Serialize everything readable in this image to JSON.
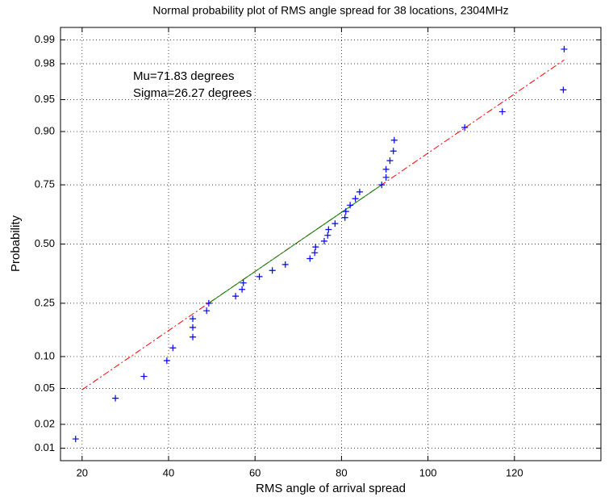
{
  "chart_data": {
    "type": "scatter",
    "title": "Normal probability plot of  RMS angle spread for 38 locations, 2304MHz",
    "x_label": "RMS angle of arrival spread",
    "y_label": "Probability",
    "yscale": "normal-probability",
    "grid": true,
    "annotations": [
      "Mu=71.83 degrees",
      "Sigma=26.27 degrees"
    ],
    "xlim": [
      15,
      140
    ],
    "xticks": [
      20,
      40,
      60,
      80,
      100,
      120
    ],
    "ylim": [
      0.0068,
      0.9932
    ],
    "yticks": [
      0.01,
      0.02,
      0.05,
      {
        "value": 0.1,
        "label": "0.10"
      },
      0.25,
      {
        "value": 0.5,
        "label": "0.50"
      },
      0.75,
      {
        "value": 0.9,
        "label": "0.90"
      },
      0.95,
      0.98,
      0.99
    ],
    "series": [
      {
        "color": "#0000ff",
        "marker": "+",
        "x": [
          18.5,
          27.7,
          34.3,
          39.6,
          41,
          45.6,
          45.6,
          45.6,
          48.8,
          49.3,
          55.5,
          57,
          57.3,
          61,
          64,
          67,
          72.7,
          73.8,
          74,
          76,
          76.8,
          77,
          78.5,
          80.8,
          81,
          82,
          83.2,
          84.2,
          89.3,
          90.3,
          90.3,
          91.2,
          92,
          92.2,
          108.5,
          117.2,
          131.3,
          131.5
        ],
        "values": [
          0.0132,
          0.0395,
          0.0658,
          0.0921,
          0.1184,
          0.1447,
          0.1711,
          0.1974,
          0.2237,
          0.25,
          0.2763,
          0.3026,
          0.3289,
          0.3553,
          0.3816,
          0.4079,
          0.4342,
          0.4605,
          0.4868,
          0.5132,
          0.5395,
          0.5658,
          0.5921,
          0.6184,
          0.6447,
          0.6711,
          0.6974,
          0.7237,
          0.75,
          0.7763,
          0.8026,
          0.8289,
          0.8553,
          0.8816,
          0.9079,
          0.9342,
          0.9605,
          0.9868
        ]
      }
    ],
    "reference_lines": [
      {
        "color": "#ff0000",
        "style": "dashdot",
        "x": [
          20,
          131.5
        ],
        "values": [
          0.0485,
          0.982
        ]
      },
      {
        "color": "#008000",
        "style": "solid",
        "x": [
          49.3,
          89.3
        ],
        "values": [
          0.25,
          0.75
        ]
      }
    ]
  }
}
